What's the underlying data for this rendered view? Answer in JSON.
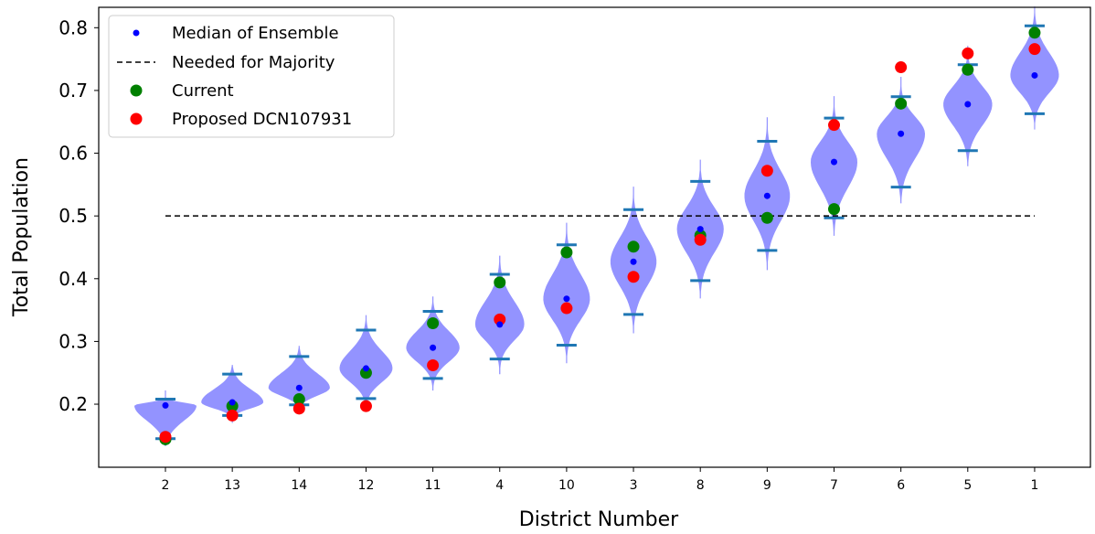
{
  "chart_data": {
    "type": "violin",
    "xlabel": "District Number",
    "ylabel": "Total Population",
    "ylim": [
      0.0995,
      0.8325
    ],
    "yticks": [
      0.2,
      0.3,
      0.4,
      0.5,
      0.6,
      0.7,
      0.8
    ],
    "ytick_labels": [
      "0.2",
      "0.3",
      "0.4",
      "0.5",
      "0.6",
      "0.7",
      "0.8"
    ],
    "categories": [
      "2",
      "13",
      "14",
      "12",
      "11",
      "4",
      "10",
      "3",
      "8",
      "9",
      "7",
      "6",
      "5",
      "1"
    ],
    "majority_threshold": 0.5,
    "legend": {
      "position": "upper-left",
      "entries": [
        {
          "label": "Median of Ensemble",
          "marker": "dot",
          "color": "#0000ff"
        },
        {
          "label": "Needed for Majority",
          "marker": "dashed-line",
          "color": "#000000"
        },
        {
          "label": "Current",
          "marker": "circle",
          "color": "#008000"
        },
        {
          "label": "Proposed DCN107931",
          "marker": "circle",
          "color": "#ff0000"
        }
      ]
    },
    "series": [
      {
        "name": "Median of Ensemble",
        "values": [
          0.198,
          0.203,
          0.226,
          0.257,
          0.29,
          0.327,
          0.368,
          0.427,
          0.479,
          0.532,
          0.586,
          0.631,
          0.678,
          0.724
        ]
      },
      {
        "name": "Current",
        "values": [
          0.144,
          0.197,
          0.208,
          0.25,
          0.329,
          0.394,
          0.442,
          0.451,
          0.469,
          0.497,
          0.511,
          0.679,
          0.733,
          0.792
        ]
      },
      {
        "name": "Proposed DCN107931",
        "values": [
          0.148,
          0.182,
          0.193,
          0.197,
          0.262,
          0.335,
          0.353,
          0.403,
          0.462,
          0.572,
          0.645,
          0.737,
          0.759,
          0.766
        ]
      }
    ],
    "whisker_min": [
      0.145,
      0.182,
      0.199,
      0.209,
      0.241,
      0.272,
      0.294,
      0.343,
      0.397,
      0.445,
      0.497,
      0.546,
      0.604,
      0.663
    ],
    "whisker_max": [
      0.208,
      0.248,
      0.276,
      0.318,
      0.348,
      0.407,
      0.454,
      0.51,
      0.555,
      0.619,
      0.656,
      0.69,
      0.741,
      0.803
    ],
    "colors": {
      "violin_fill": "#8080ff",
      "whisker": "#1f77b4",
      "median": "#0000ff",
      "current": "#008000",
      "proposed": "#ff0000",
      "threshold": "#000000"
    }
  }
}
